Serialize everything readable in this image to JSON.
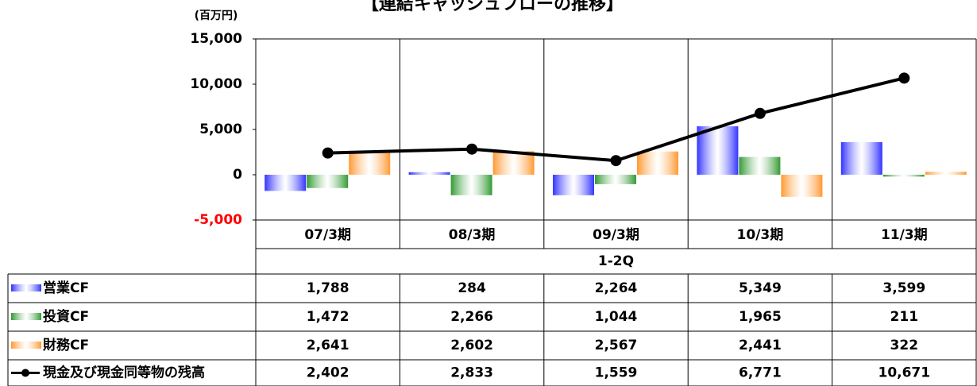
{
  "chart_data": {
    "type": "bar_line_table",
    "title": "【連結キャッシュフローの推移】",
    "y_unit": "(百万円)",
    "annotation": "1-2Q",
    "categories": [
      "07/3期",
      "08/3期",
      "09/3期",
      "10/3期",
      "11/3期"
    ],
    "ylim": [
      -5000,
      15000
    ],
    "yticks": [
      {
        "value": 15000,
        "label": "15,000"
      },
      {
        "value": 10000,
        "label": "10,000"
      },
      {
        "value": 5000,
        "label": "5,000"
      },
      0,
      {
        "value": -5000,
        "label": "-5,000"
      }
    ],
    "negative_tick_color": "#ff0000",
    "grid": false,
    "series": [
      {
        "name": "営業CF",
        "type": "bar",
        "color": "#3333ff",
        "values": [
          -1788,
          284,
          -2264,
          5349,
          3599
        ],
        "value_labels": [
          "1,788",
          "284",
          "2,264",
          "5,349",
          "3,599"
        ]
      },
      {
        "name": "投資CF",
        "type": "bar",
        "color": "#339933",
        "values": [
          -1472,
          -2266,
          -1044,
          1965,
          -211
        ],
        "value_labels": [
          "1,472",
          "2,266",
          "1,044",
          "1,965",
          "211"
        ]
      },
      {
        "name": "財務CF",
        "type": "bar",
        "color": "#ff9933",
        "values": [
          2641,
          2602,
          2567,
          -2441,
          322
        ],
        "value_labels": [
          "2,641",
          "2,602",
          "2,567",
          "2,441",
          "322"
        ]
      },
      {
        "name": "現金及び現金同等物の残高",
        "type": "line",
        "color": "#000000",
        "values": [
          2402,
          2833,
          1559,
          6771,
          10671
        ],
        "value_labels": [
          "2,402",
          "2,833",
          "1,559",
          "6,771",
          "10,671"
        ]
      }
    ]
  }
}
